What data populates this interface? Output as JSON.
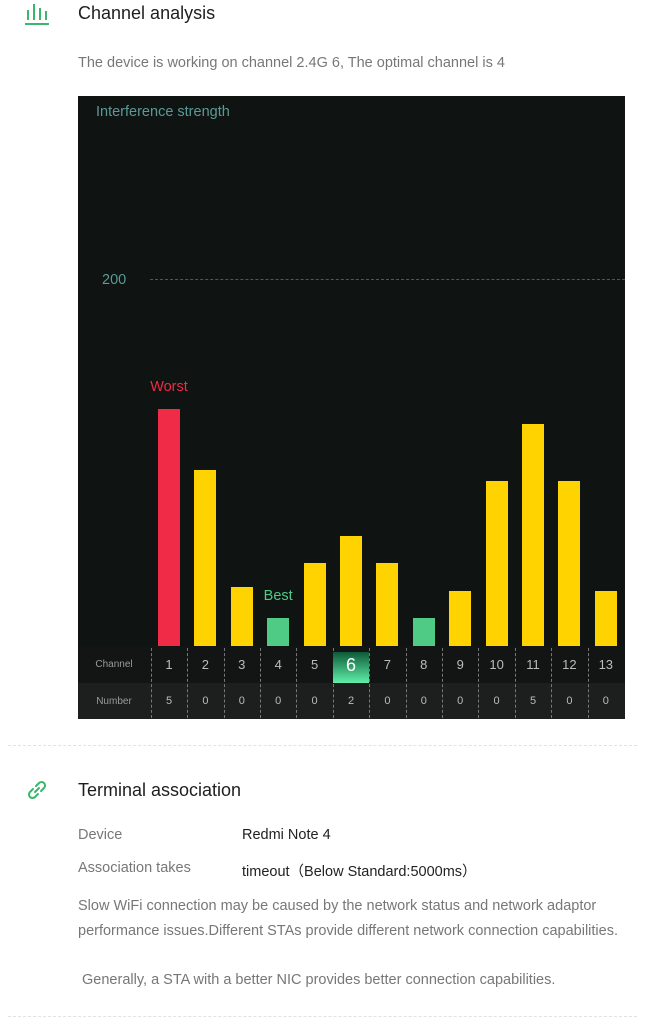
{
  "channel_analysis": {
    "icon": "bar-chart-icon",
    "title": "Channel analysis",
    "summary": "The device is working on channel 2.4G 6, The optimal channel is 4"
  },
  "chart_data": {
    "type": "bar",
    "title": "Interference strength",
    "gridline_label": "200",
    "gridline_value": 200,
    "ylim": [
      0,
      200
    ],
    "categories": [
      "1",
      "2",
      "3",
      "4",
      "5",
      "6",
      "7",
      "8",
      "9",
      "10",
      "11",
      "12",
      "13"
    ],
    "values": [
      129,
      96,
      32,
      15,
      45,
      60,
      45,
      15,
      30,
      90,
      121,
      90,
      30
    ],
    "numbers": [
      "5",
      "0",
      "0",
      "0",
      "0",
      "2",
      "0",
      "0",
      "0",
      "0",
      "5",
      "0",
      "0"
    ],
    "row_labels": {
      "channel": "Channel",
      "number": "Number"
    },
    "worst_label": "Worst",
    "best_label": "Best",
    "worst_channel": "1",
    "best_channels": [
      "4",
      "8"
    ],
    "current_channel": "6",
    "colors": {
      "worst": "#ef2b48",
      "best": "#4fcb85",
      "normal": "#fed300",
      "background": "#0f1311"
    }
  },
  "terminal_association": {
    "icon": "link-icon",
    "title": "Terminal association",
    "device_label": "Device",
    "device_value": "Redmi Note 4",
    "assoc_label": "Association takes",
    "assoc_value": "timeout（Below Standard:5000ms）",
    "para1": "Slow WiFi connection may be caused by the network status and network adaptor performance issues.Different STAs provide different network connection capabilities.",
    "para2": " Generally, a STA with a better NIC provides better connection capabilities."
  }
}
